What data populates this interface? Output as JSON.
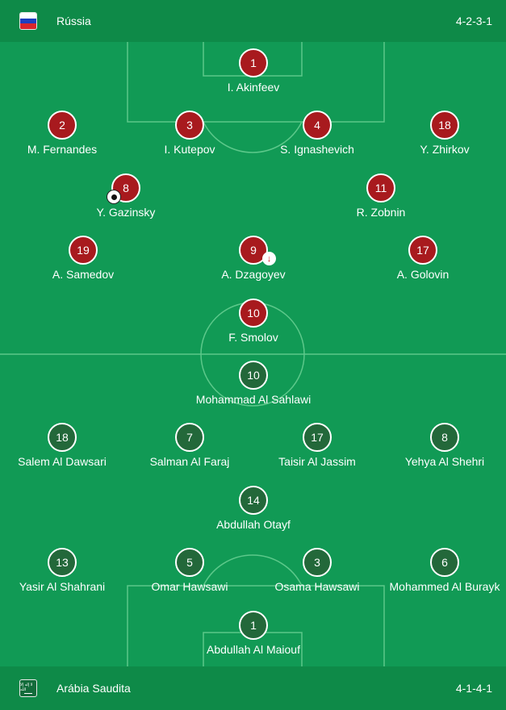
{
  "home": {
    "team_name": "Rússia",
    "formation": "4-2-3-1",
    "flag_icon": "russia-flag-icon",
    "shirt_color": "#a81a1e",
    "players": [
      {
        "number": "1",
        "name": "I. Akinfeev"
      },
      {
        "number": "2",
        "name": "M. Fernandes"
      },
      {
        "number": "3",
        "name": "I. Kutepov"
      },
      {
        "number": "4",
        "name": "S. Ignashevich"
      },
      {
        "number": "18",
        "name": "Y. Zhirkov"
      },
      {
        "number": "8",
        "name": "Y. Gazinsky",
        "event_icon": "goal-ball-icon"
      },
      {
        "number": "11",
        "name": "R. Zobnin"
      },
      {
        "number": "19",
        "name": "A. Samedov"
      },
      {
        "number": "9",
        "name": "A. Dzagoyev",
        "event_icon": "substitution-out-icon"
      },
      {
        "number": "17",
        "name": "A. Golovin"
      },
      {
        "number": "10",
        "name": "F. Smolov"
      }
    ]
  },
  "away": {
    "team_name": "Arábia Saudita",
    "formation": "4-1-4-1",
    "flag_icon": "saudi-arabia-flag-icon",
    "flag_text": "لا إله إلا الله",
    "shirt_color": "#23683a",
    "players": [
      {
        "number": "10",
        "name": "Mohammad Al Sahlawi"
      },
      {
        "number": "18",
        "name": "Salem Al Dawsari"
      },
      {
        "number": "7",
        "name": "Salman Al Faraj"
      },
      {
        "number": "17",
        "name": "Taisir Al Jassim"
      },
      {
        "number": "8",
        "name": "Yehya Al Shehri"
      },
      {
        "number": "14",
        "name": "Abdullah Otayf"
      },
      {
        "number": "13",
        "name": "Yasir Al Shahrani"
      },
      {
        "number": "5",
        "name": "Omar Hawsawi"
      },
      {
        "number": "3",
        "name": "Osama Hawsawi"
      },
      {
        "number": "6",
        "name": "Mohammed Al Burayk"
      },
      {
        "number": "1",
        "name": "Abdullah Al Maiouf"
      }
    ]
  },
  "colors": {
    "pitch": "#119a55",
    "header": "#0e8a48",
    "lines": "#5cc88a"
  }
}
